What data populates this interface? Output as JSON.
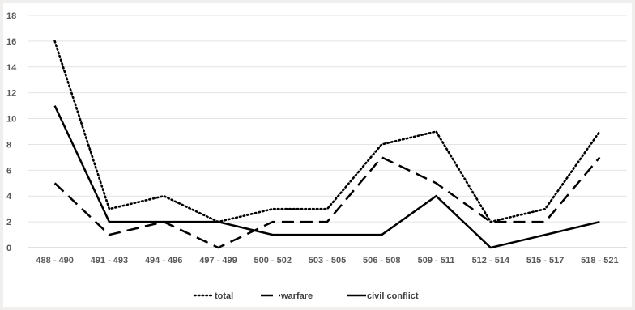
{
  "chart_data": {
    "type": "line",
    "categories": [
      "488 - 490",
      "491 - 493",
      "494 - 496",
      "497 - 499",
      "500 - 502",
      "503 - 505",
      "506 - 508",
      "509 - 511",
      "512 - 514",
      "515 - 517",
      "518 - 521"
    ],
    "ylim": [
      0,
      18
    ],
    "yticks": [
      0,
      2,
      4,
      6,
      8,
      10,
      12,
      14,
      16,
      18
    ],
    "grid": true,
    "legend_position": "bottom",
    "series": [
      {
        "name": "total",
        "values": [
          16,
          3,
          4,
          2,
          3,
          3,
          8,
          9,
          2,
          3,
          9
        ],
        "style": "dotted",
        "color": "#000000"
      },
      {
        "name": "warfare",
        "values": [
          5,
          1,
          2,
          0,
          2,
          2,
          7,
          5,
          2,
          2,
          7
        ],
        "style": "dashed",
        "color": "#000000"
      },
      {
        "name": "civil conflict",
        "values": [
          11,
          2,
          2,
          2,
          1,
          1,
          1,
          4,
          0,
          1,
          2
        ],
        "style": "solid",
        "color": "#000000"
      }
    ]
  }
}
